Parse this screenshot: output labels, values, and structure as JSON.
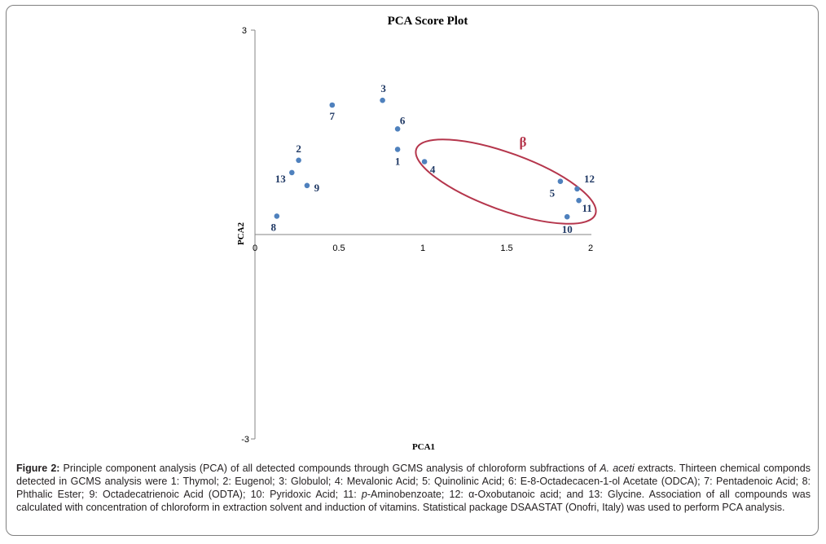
{
  "chart_data": {
    "type": "scatter",
    "title": "PCA Score Plot",
    "xlabel": "PCA1",
    "ylabel": "PCA2",
    "xlim": [
      0,
      2
    ],
    "ylim": [
      -3,
      3
    ],
    "x_ticks": [
      "0",
      "0.5",
      "1",
      "1.5",
      "2"
    ],
    "y_ticks": [
      "3",
      "-3"
    ],
    "grid": false,
    "points": [
      {
        "label": "1",
        "x": 0.85,
        "y": 1.25
      },
      {
        "label": "2",
        "x": 0.26,
        "y": 1.09
      },
      {
        "label": "3",
        "x": 0.76,
        "y": 1.97
      },
      {
        "label": "4",
        "x": 1.01,
        "y": 1.07
      },
      {
        "label": "5",
        "x": 1.82,
        "y": 0.78
      },
      {
        "label": "6",
        "x": 0.85,
        "y": 1.55
      },
      {
        "label": "7",
        "x": 0.46,
        "y": 1.9
      },
      {
        "label": "8",
        "x": 0.13,
        "y": 0.27
      },
      {
        "label": "9",
        "x": 0.31,
        "y": 0.72
      },
      {
        "label": "10",
        "x": 1.86,
        "y": 0.26
      },
      {
        "label": "11",
        "x": 1.93,
        "y": 0.5
      },
      {
        "label": "12",
        "x": 1.92,
        "y": 0.67
      },
      {
        "label": "13",
        "x": 0.22,
        "y": 0.91
      }
    ],
    "annotations": [
      {
        "text": "β",
        "description": "ellipse group",
        "members": [
          "4",
          "5",
          "10",
          "11",
          "12"
        ]
      }
    ]
  },
  "caption": {
    "label": "Figure 2:",
    "part1": " Principle component analysis (PCA) of all detected compounds through GCMS analysis of chloroform subfractions of ",
    "species": "A. aceti",
    "part2": " extracts. Thirteen chemical componds detected in GCMS analysis were 1: Thymol; 2: Eugenol; 3: Globulol; 4: Mevalonic Acid; 5: Quinolinic Acid; 6: E-8-Octadecacen-1-ol Acetate (ODCA); 7: Pentadenoic Acid; 8: Phthalic Ester; 9: Octadecatrienoic Acid (ODTA); 10: Pyridoxic Acid; 11: ",
    "p_prefix": "p",
    "part3": "-Aminobenzoate; 12: α-Oxobutanoic acid; and 13: Glycine. Association of all compounds was calculated with concentration of chloroform in extraction solvent and induction of vitamins. Statistical package DSAASTAT (Onofri, Italy) was used to perform PCA analysis."
  },
  "colors": {
    "point": "#4f81bd",
    "label": "#1f3864",
    "ellipse": "#b5364c",
    "axis": "#868686"
  }
}
